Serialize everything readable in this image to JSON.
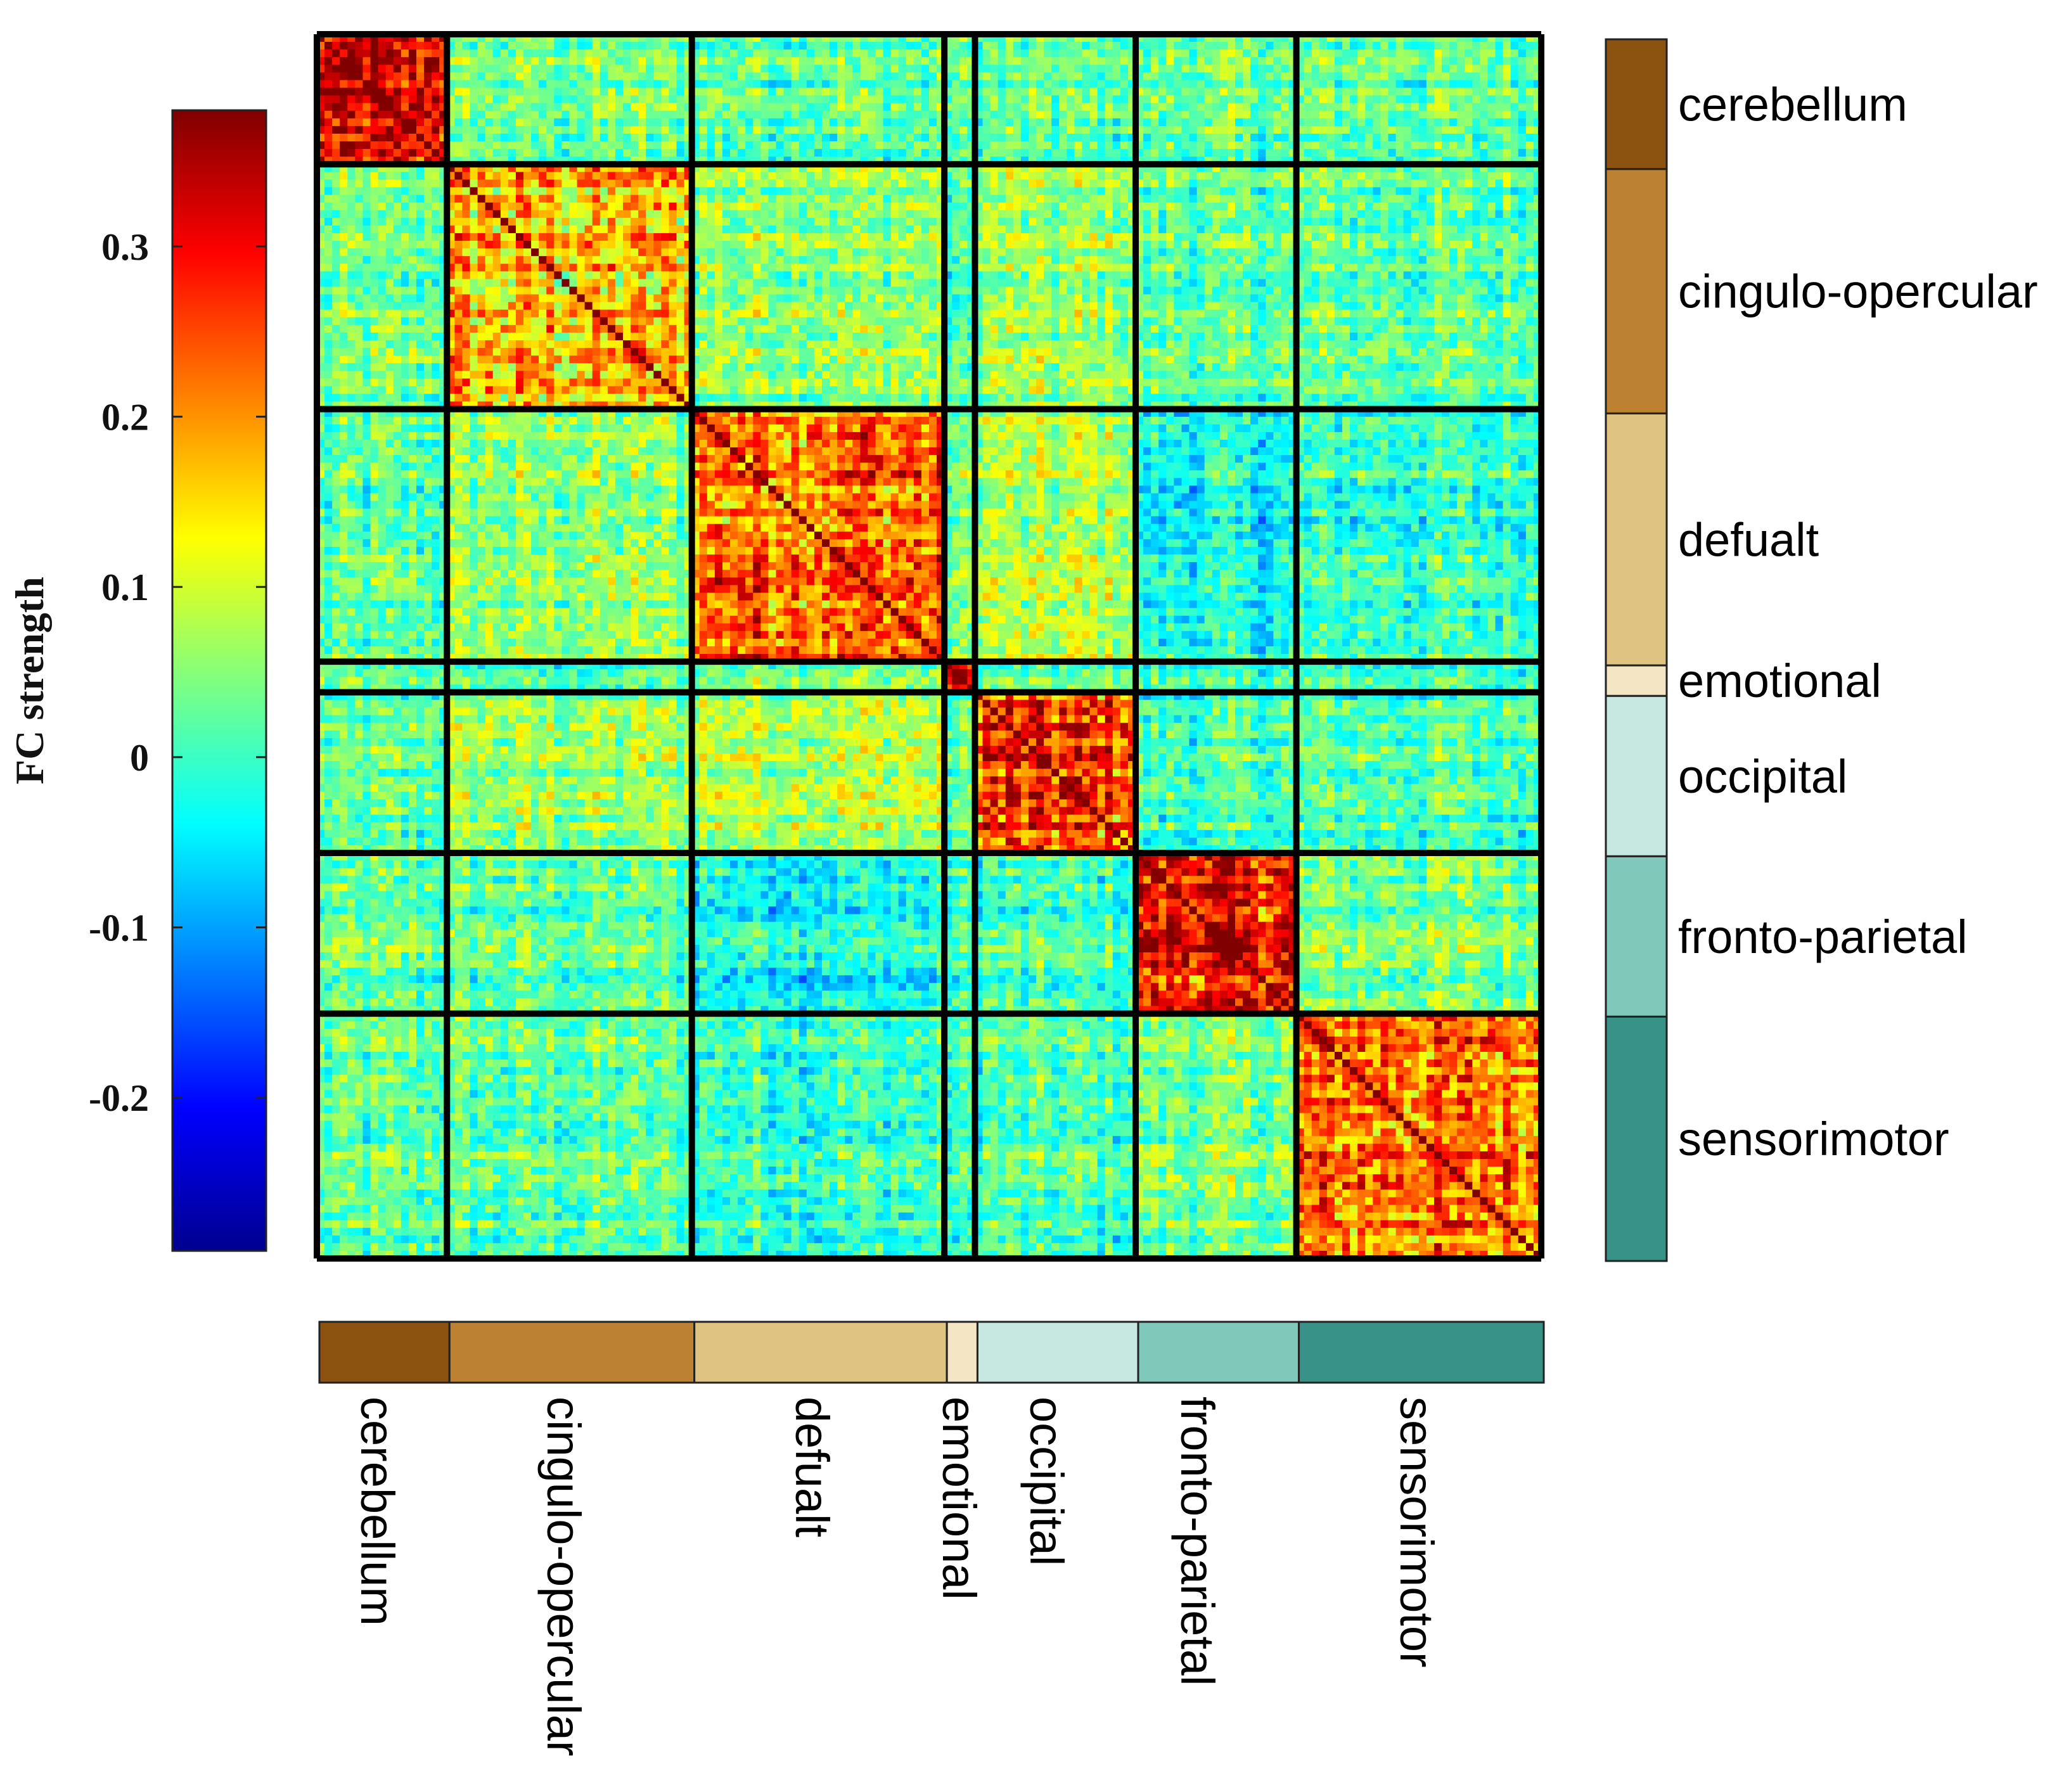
{
  "chart_data": {
    "type": "heatmap",
    "title": "",
    "colorbar": {
      "label": "FC strength",
      "colormap": "jet",
      "range": [
        -0.29,
        0.38
      ],
      "ticks": [
        0.3,
        0.2,
        0.1,
        0,
        -0.1,
        -0.2
      ],
      "tick_labels": [
        "0.3",
        "0.2",
        "0.1",
        "0",
        "-0.1",
        "-0.2"
      ]
    },
    "matrix_size": 160,
    "networks": [
      {
        "name": "cerebellum",
        "nodes": 17,
        "color": "#8B5210",
        "within_fc": 0.3
      },
      {
        "name": "cingulo-opercular",
        "nodes": 32,
        "color": "#BC8232",
        "within_fc": 0.16
      },
      {
        "name": "defualt",
        "nodes": 33,
        "color": "#DEC383",
        "within_fc": 0.24
      },
      {
        "name": "emotional",
        "nodes": 4,
        "color": "#F4E6C4",
        "within_fc": 0.3
      },
      {
        "name": "occipital",
        "nodes": 21,
        "color": "#C6E8E0",
        "within_fc": 0.26
      },
      {
        "name": "fronto-parietal",
        "nodes": 21,
        "color": "#80C8BA",
        "within_fc": 0.29
      },
      {
        "name": "sensorimotor",
        "nodes": 32,
        "color": "#389288",
        "within_fc": 0.22
      }
    ],
    "between_network_fc": [
      [
        null,
        0.03,
        0.02,
        0.02,
        0.02,
        0.02,
        0.02
      ],
      [
        0.03,
        null,
        0.06,
        0.0,
        0.06,
        0.02,
        0.02
      ],
      [
        0.02,
        0.06,
        null,
        0.04,
        0.08,
        -0.03,
        0.0
      ],
      [
        0.02,
        0.0,
        0.04,
        null,
        0.02,
        0.0,
        0.0
      ],
      [
        0.02,
        0.06,
        0.08,
        0.02,
        null,
        0.0,
        0.01
      ],
      [
        0.02,
        0.02,
        -0.03,
        0.0,
        0.0,
        null,
        0.04
      ],
      [
        0.02,
        0.02,
        0.0,
        0.0,
        0.01,
        0.04,
        null
      ]
    ]
  }
}
